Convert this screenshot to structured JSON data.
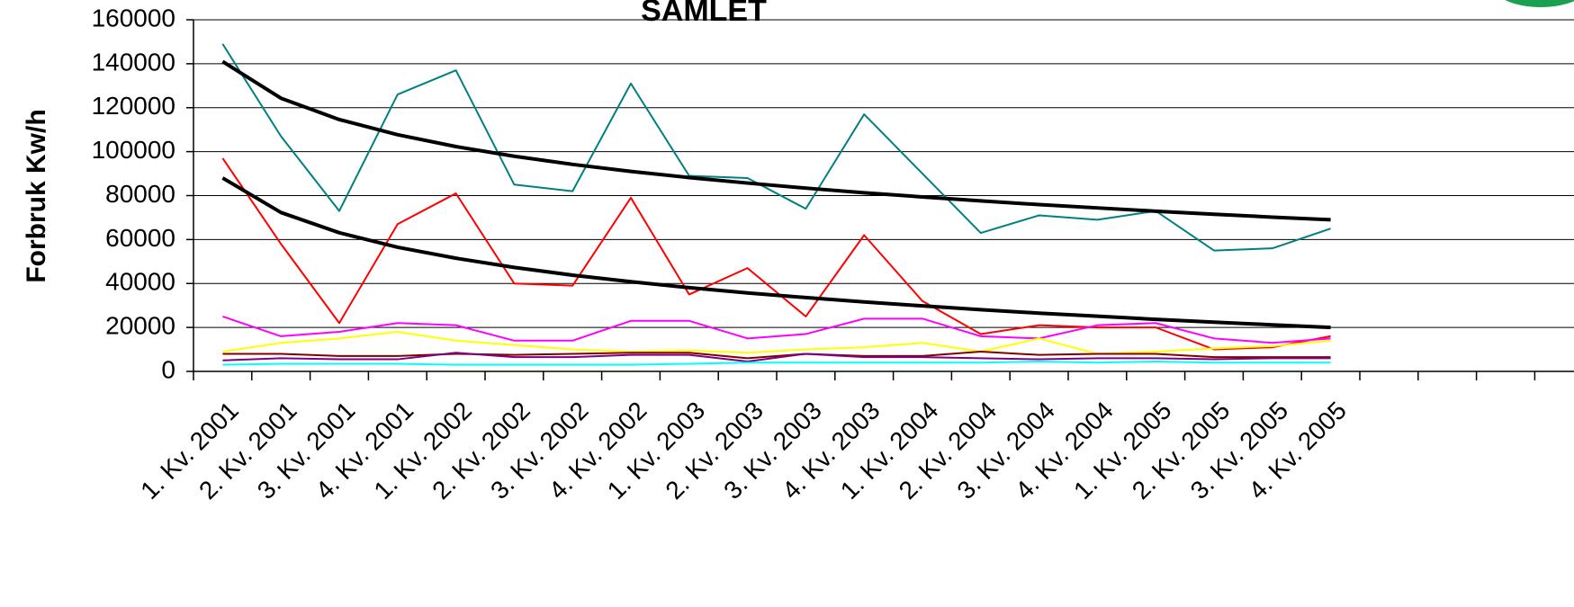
{
  "chart_data": {
    "type": "line",
    "title": "SAMLET",
    "y_label": "Forbruk Kw/h",
    "categories": [
      "1. Kv. 2001",
      "2. Kv. 2001",
      "3. Kv. 2001",
      "4. Kv. 2001",
      "1. Kv. 2002",
      "2. Kv. 2002",
      "3. Kv. 2002",
      "4. Kv. 2002",
      "1. Kv. 2003",
      "2. Kv. 2003",
      "3. Kv. 2003",
      "4. Kv. 2003",
      "1. Kv. 2004",
      "2. Kv. 2004",
      "3. Kv. 2004",
      "4. Kv. 2004",
      "1. Kv. 2005",
      "2. Kv. 2005",
      "3. Kv. 2005",
      "4. Kv. 2005"
    ],
    "series": [
      {
        "color": "#008080",
        "values": [
          149000,
          107000,
          73000,
          126000,
          137000,
          85000,
          82000,
          131000,
          89000,
          88000,
          74000,
          117000,
          90000,
          63000,
          71000,
          69000,
          73000,
          55000,
          56000,
          65000
        ]
      },
      {
        "color": "#ff0000",
        "values": [
          97000,
          58000,
          22000,
          67000,
          81000,
          40000,
          39000,
          79000,
          35000,
          47000,
          25000,
          62000,
          32000,
          17000,
          21000,
          20000,
          20000,
          10000,
          11000,
          16000
        ]
      },
      {
        "color": "#ff00ff",
        "values": [
          25000,
          16000,
          18000,
          22000,
          21000,
          14000,
          14000,
          23000,
          23000,
          15000,
          17000,
          24000,
          24000,
          16000,
          15000,
          21000,
          22000,
          15000,
          13000,
          15000
        ]
      },
      {
        "color": "#ffff00",
        "values": [
          9000,
          13000,
          15000,
          18000,
          14000,
          12000,
          10000,
          9000,
          9500,
          8500,
          10000,
          11000,
          13000,
          9000,
          15000,
          8000,
          9000,
          10500,
          11500,
          14000
        ]
      },
      {
        "color": "#800000",
        "values": [
          8000,
          8000,
          7000,
          7000,
          8000,
          7500,
          8000,
          8500,
          8500,
          6000,
          8000,
          7000,
          7000,
          9000,
          7500,
          8000,
          8000,
          6500,
          6500,
          6500
        ]
      },
      {
        "color": "#800080",
        "values": [
          5000,
          6000,
          5500,
          5500,
          8500,
          6500,
          6500,
          7500,
          7500,
          4500,
          8000,
          6500,
          6500,
          6000,
          5500,
          6000,
          6000,
          5500,
          6000,
          6000
        ]
      },
      {
        "color": "#00ffff",
        "values": [
          3000,
          3500,
          3500,
          3500,
          3000,
          3000,
          3000,
          3000,
          3500,
          4000,
          4000,
          4000,
          4000,
          4000,
          4500,
          4000,
          4500,
          4000,
          4000,
          4000
        ]
      },
      {
        "color": "#000000",
        "width": 4,
        "values": [
          141000,
          124300,
          114600,
          107700,
          102300,
          97900,
          94200,
          91000,
          88200,
          85700,
          83400,
          81300,
          79400,
          77600,
          75900,
          74400,
          72900,
          71500,
          70200,
          69000
        ]
      },
      {
        "color": "#000000",
        "width": 4,
        "values": [
          88000,
          72300,
          63100,
          56500,
          51500,
          47300,
          43800,
          40800,
          38100,
          35700,
          33600,
          31600,
          29800,
          28100,
          26500,
          25100,
          23700,
          22400,
          21200,
          20000
        ]
      }
    ],
    "ylim": [
      0,
      160000
    ],
    "yticks": [
      0,
      20000,
      40000,
      60000,
      80000,
      100000,
      120000,
      140000,
      160000
    ],
    "grid": true
  }
}
